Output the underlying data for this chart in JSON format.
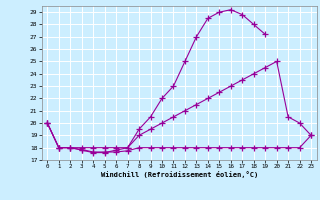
{
  "background_color": "#cceeff",
  "grid_color": "#ffffff",
  "line_color": "#990099",
  "xlim": [
    -0.5,
    23.5
  ],
  "ylim": [
    17,
    29.5
  ],
  "xticks": [
    0,
    1,
    2,
    3,
    4,
    5,
    6,
    7,
    8,
    9,
    10,
    11,
    12,
    13,
    14,
    15,
    16,
    17,
    18,
    19,
    20,
    21,
    22,
    23
  ],
  "yticks": [
    17,
    18,
    19,
    20,
    21,
    22,
    23,
    24,
    25,
    26,
    27,
    28,
    29
  ],
  "xlabel": "Windchill (Refroidissement éolien,°C)",
  "line1_x": [
    0,
    1,
    2,
    3,
    4,
    5,
    6,
    7,
    8,
    9,
    10,
    11,
    12,
    13,
    14,
    15,
    16,
    17,
    18,
    19
  ],
  "line1_y": [
    20,
    18,
    18,
    17.8,
    17.6,
    17.6,
    17.8,
    18,
    19.5,
    20.5,
    22,
    23,
    25,
    27,
    28.5,
    29.0,
    29.2,
    28.8,
    28.0,
    27.2
  ],
  "line2_x": [
    0,
    1,
    2,
    3,
    4,
    5,
    6,
    7,
    8,
    9,
    10,
    11,
    12,
    13,
    14,
    15,
    16,
    17,
    18,
    19,
    20,
    21,
    22,
    23
  ],
  "line2_y": [
    20,
    18,
    18,
    18,
    18,
    18,
    18,
    18,
    19,
    19.5,
    20,
    20.5,
    21,
    21.5,
    22,
    22.5,
    23,
    23.5,
    24,
    24.5,
    25,
    20.5,
    20,
    19
  ],
  "line3_x": [
    0,
    1,
    2,
    3,
    4,
    5,
    6,
    7,
    8,
    9,
    10,
    11,
    12,
    13,
    14,
    15,
    16,
    17,
    18,
    19,
    20,
    21,
    22,
    23
  ],
  "line3_y": [
    20,
    18,
    18,
    17.85,
    17.65,
    17.65,
    17.65,
    17.75,
    18,
    18,
    18,
    18,
    18,
    18,
    18,
    18,
    18,
    18,
    18,
    18,
    18,
    18,
    18,
    19
  ]
}
